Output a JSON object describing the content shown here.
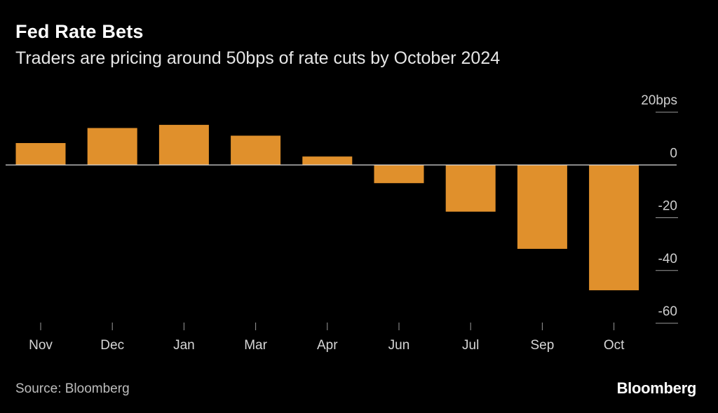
{
  "chart_data": {
    "type": "bar",
    "title": "Fed Rate Bets",
    "subtitle": "Traders are pricing around 50bps of rate cuts by October 2024",
    "categories": [
      "Nov",
      "Dec",
      "Jan",
      "Mar",
      "Apr",
      "Jun",
      "Jul",
      "Sep",
      "Oct"
    ],
    "values": [
      8.3,
      14.0,
      15.2,
      11.1,
      3.2,
      -6.9,
      -17.7,
      -31.8,
      -47.5
    ],
    "ylim": [
      -60,
      20
    ],
    "yticks": [
      20,
      0,
      -20,
      -40,
      -60
    ],
    "ytick_labels": [
      "20bps",
      "0",
      "-20",
      "-40",
      "-60"
    ],
    "xlabel": "",
    "ylabel": "",
    "bar_color": "#e0902c",
    "grid": false
  },
  "footer": {
    "source": "Source: Bloomberg",
    "brand": "Bloomberg"
  }
}
